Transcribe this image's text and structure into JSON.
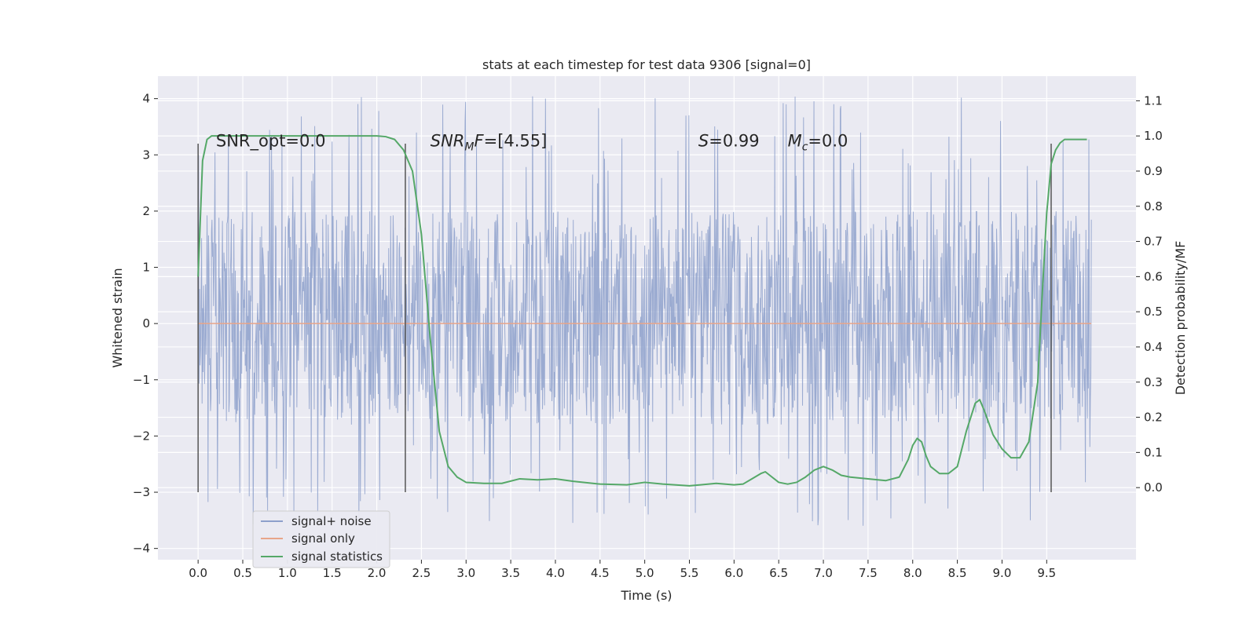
{
  "chart_data": {
    "type": "line",
    "title": "stats at each timestep for test data 9306 [signal=0]",
    "xlabel": "Time (s)",
    "ylabel": "Whitened strain",
    "y2label": "Detection probability/MF",
    "xlim": [
      -0.45,
      10.5
    ],
    "ylim": [
      -4.2,
      4.4
    ],
    "y2lim": [
      -0.205,
      1.17
    ],
    "x_ticks": [
      "0.0",
      "0.5",
      "1.0",
      "1.5",
      "2.0",
      "2.5",
      "3.0",
      "3.5",
      "4.0",
      "4.5",
      "5.0",
      "5.5",
      "6.0",
      "6.5",
      "7.0",
      "7.5",
      "8.0",
      "8.5",
      "9.0",
      "9.5"
    ],
    "y_ticks": [
      "4",
      "3",
      "2",
      "1",
      "0",
      "−1",
      "−2",
      "−3",
      "−4"
    ],
    "y2_ticks": [
      "1.1",
      "1.0",
      "0.9",
      "0.8",
      "0.7",
      "0.6",
      "0.5",
      "0.4",
      "0.3",
      "0.2",
      "0.1",
      "0.0"
    ],
    "grid": true,
    "legend_position": "lower-left",
    "series": [
      {
        "name": "signal+ noise",
        "color": "#8da0cb",
        "axis": "left",
        "x_range": [
          0.0,
          10.0
        ],
        "band": [
          -1.8,
          2.0
        ],
        "peak_range": [
          -3.6,
          4.05
        ]
      },
      {
        "name": "signal only",
        "color": "#e8a58a",
        "axis": "left",
        "x": [
          0.0,
          10.0
        ],
        "y": [
          0.0,
          0.0
        ]
      },
      {
        "name": "signal statistics",
        "color": "#55a868",
        "axis": "right",
        "x": [
          0.0,
          0.05,
          0.1,
          0.15,
          0.2,
          0.3,
          0.5,
          0.8,
          1.0,
          1.3,
          1.6,
          1.9,
          2.0,
          2.1,
          2.2,
          2.3,
          2.4,
          2.5,
          2.6,
          2.7,
          2.8,
          2.9,
          3.0,
          3.2,
          3.4,
          3.6,
          3.8,
          4.0,
          4.2,
          4.5,
          4.8,
          5.0,
          5.2,
          5.5,
          5.8,
          6.0,
          6.1,
          6.2,
          6.3,
          6.35,
          6.4,
          6.5,
          6.6,
          6.7,
          6.8,
          6.9,
          7.0,
          7.1,
          7.2,
          7.3,
          7.5,
          7.7,
          7.85,
          7.95,
          8.0,
          8.05,
          8.1,
          8.15,
          8.2,
          8.3,
          8.4,
          8.5,
          8.6,
          8.7,
          8.75,
          8.8,
          8.9,
          9.0,
          9.1,
          9.2,
          9.3,
          9.4,
          9.45,
          9.5,
          9.55,
          9.6,
          9.65,
          9.7,
          9.75,
          9.8,
          9.85,
          9.9,
          9.95
        ],
        "y": [
          0.6,
          0.93,
          0.99,
          1.0,
          1.0,
          1.0,
          1.0,
          1.0,
          1.0,
          1.0,
          1.0,
          1.0,
          1.0,
          0.998,
          0.99,
          0.96,
          0.9,
          0.72,
          0.42,
          0.16,
          0.06,
          0.03,
          0.015,
          0.012,
          0.012,
          0.025,
          0.022,
          0.025,
          0.018,
          0.01,
          0.008,
          0.015,
          0.01,
          0.005,
          0.012,
          0.008,
          0.01,
          0.025,
          0.04,
          0.045,
          0.035,
          0.015,
          0.01,
          0.015,
          0.03,
          0.05,
          0.06,
          0.05,
          0.035,
          0.03,
          0.025,
          0.02,
          0.03,
          0.08,
          0.12,
          0.14,
          0.13,
          0.09,
          0.06,
          0.04,
          0.04,
          0.06,
          0.16,
          0.24,
          0.25,
          0.22,
          0.15,
          0.11,
          0.085,
          0.085,
          0.13,
          0.3,
          0.55,
          0.78,
          0.92,
          0.96,
          0.98,
          0.99,
          0.99,
          0.99,
          0.99,
          0.99,
          0.99
        ]
      }
    ],
    "vertical_markers": {
      "color": "#555555",
      "x": [
        0.0,
        2.32,
        9.55
      ],
      "y_range": [
        -3.0,
        3.2
      ]
    },
    "annotations": [
      {
        "id": "snr-opt",
        "text": "SNR_opt=0.0",
        "x": 0.2,
        "y": 3.15
      },
      {
        "id": "snr-mf",
        "text": "SNR",
        "sub": "M",
        "suffix": "F=[4.55]",
        "x": 2.6,
        "y": 3.15
      },
      {
        "id": "s-value",
        "text": "S",
        "suffix": "=0.99",
        "x": 5.6,
        "y": 3.15
      },
      {
        "id": "mc-value",
        "text": "M",
        "sub": "c",
        "suffix": "=0.0",
        "x": 6.6,
        "y": 3.15
      }
    ]
  }
}
